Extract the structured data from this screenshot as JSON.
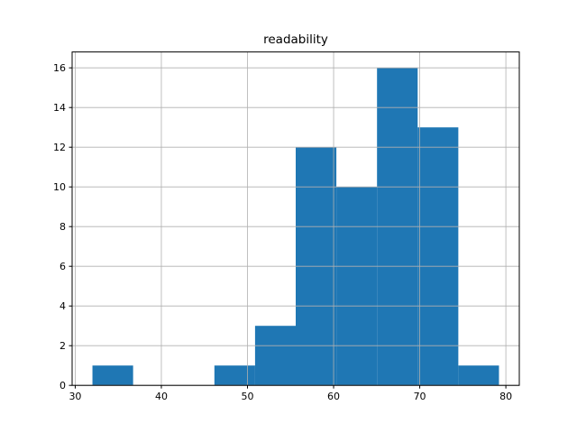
{
  "figure": {
    "background": "#ffffff"
  },
  "chart_data": {
    "type": "bar",
    "subtype": "histogram",
    "title": "readability",
    "xlabel": "",
    "ylabel": "",
    "bin_edges": [
      32.0,
      36.72,
      41.44,
      46.16,
      50.88,
      55.6,
      60.32,
      65.04,
      69.76,
      74.48,
      79.2
    ],
    "counts": [
      1,
      0,
      0,
      1,
      3,
      12,
      10,
      16,
      13,
      1
    ],
    "total_count": 57,
    "xticks": [
      30,
      40,
      50,
      60,
      70,
      80
    ],
    "yticks": [
      0,
      2,
      4,
      6,
      8,
      10,
      12,
      14,
      16
    ],
    "xlim": [
      29.64,
      81.56
    ],
    "ylim": [
      0,
      16.8
    ],
    "grid": true,
    "legend": false,
    "bar_color": "#1f77b4",
    "grid_color": "#b0b0b0",
    "spine_color": "#000000",
    "tick_color": "#000000",
    "text_color": "#000000"
  }
}
